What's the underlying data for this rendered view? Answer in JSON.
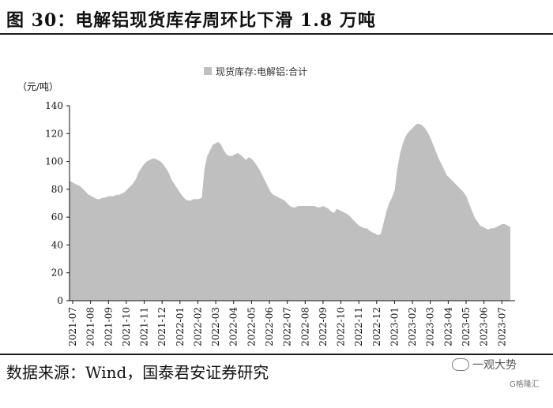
{
  "figure_title": "图 30：电解铝现货库存周环比下滑 1.8 万吨",
  "source_note": "数据来源：Wind，国泰君安证券研究",
  "watermark_text": "一观大势",
  "watermark_sub": "G格隆汇",
  "chart_data": {
    "type": "area",
    "title": "",
    "legend": [
      "现货库存:电解铝:合计"
    ],
    "unit_label": "（元/吨）",
    "ylim": [
      0,
      140
    ],
    "yticks": [
      0,
      20,
      40,
      60,
      80,
      100,
      120,
      140
    ],
    "xticks": [
      "2021-07",
      "2021-08",
      "2021-09",
      "2021-10",
      "2021-11",
      "2021-12",
      "2022-01",
      "2022-02",
      "2022-03",
      "2022-04",
      "2022-05",
      "2022-06",
      "2022-07",
      "2022-08",
      "2022-09",
      "2022-10",
      "2022-11",
      "2022-12",
      "2023-01",
      "2023-02",
      "2023-03",
      "2023-04",
      "2023-05",
      "2023-06",
      "2023-07"
    ],
    "fill_color": "#bfbfbf",
    "series": [
      {
        "name": "现货库存:电解铝:合计",
        "values": [
          86,
          85,
          84,
          83,
          82,
          80,
          78,
          76,
          75,
          74,
          73,
          73,
          74,
          74,
          75,
          75,
          75,
          76,
          76,
          77,
          78,
          80,
          82,
          84,
          87,
          92,
          95,
          98,
          100,
          101,
          102,
          102,
          101,
          100,
          98,
          95,
          92,
          87,
          84,
          81,
          78,
          75,
          73,
          72,
          72,
          73,
          73,
          73,
          74,
          95,
          104,
          108,
          112,
          113,
          114,
          112,
          108,
          105,
          104,
          104,
          105,
          106,
          105,
          103,
          101,
          103,
          102,
          100,
          97,
          94,
          90,
          86,
          82,
          78,
          76,
          75,
          74,
          73,
          72,
          70,
          68,
          67,
          67,
          68,
          68,
          68,
          68,
          68,
          68,
          68,
          67,
          67,
          68,
          67,
          66,
          64,
          63,
          66,
          65,
          64,
          63,
          62,
          60,
          58,
          56,
          54,
          53,
          52,
          52,
          50,
          49,
          48,
          47,
          48,
          56,
          64,
          70,
          74,
          79,
          95,
          106,
          113,
          118,
          121,
          123,
          125,
          127,
          127,
          126,
          124,
          121,
          117,
          112,
          107,
          102,
          98,
          94,
          90,
          88,
          86,
          84,
          82,
          80,
          78,
          75,
          70,
          65,
          60,
          57,
          54,
          53,
          52,
          51,
          52,
          52,
          53,
          54,
          55,
          55,
          54,
          53
        ]
      }
    ]
  }
}
